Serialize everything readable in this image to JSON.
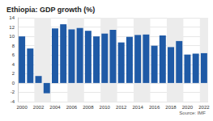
{
  "chart_data": {
    "type": "bar",
    "title": "Ethiopia: GDP growth (%)",
    "source": "Source: IMF",
    "categories": [
      "2000",
      null,
      "2002",
      null,
      "2004",
      null,
      "2006",
      null,
      "2008",
      null,
      "2010",
      null,
      "2012",
      null,
      "2014",
      null,
      "2016",
      null,
      "2018",
      null,
      "2020",
      null,
      "2022"
    ],
    "values": [
      10.0,
      7.4,
      1.5,
      -2.2,
      11.7,
      12.6,
      11.5,
      11.8,
      11.2,
      10.0,
      10.6,
      11.4,
      8.7,
      9.9,
      10.3,
      10.4,
      8.0,
      10.2,
      7.7,
      9.0,
      6.1,
      6.3,
      6.4
    ],
    "color": "#1f5aa6",
    "ylim": [
      -4,
      14
    ],
    "yticks": [
      -4,
      -2,
      0,
      2,
      4,
      6,
      8,
      10,
      12,
      14
    ],
    "grid": true
  }
}
